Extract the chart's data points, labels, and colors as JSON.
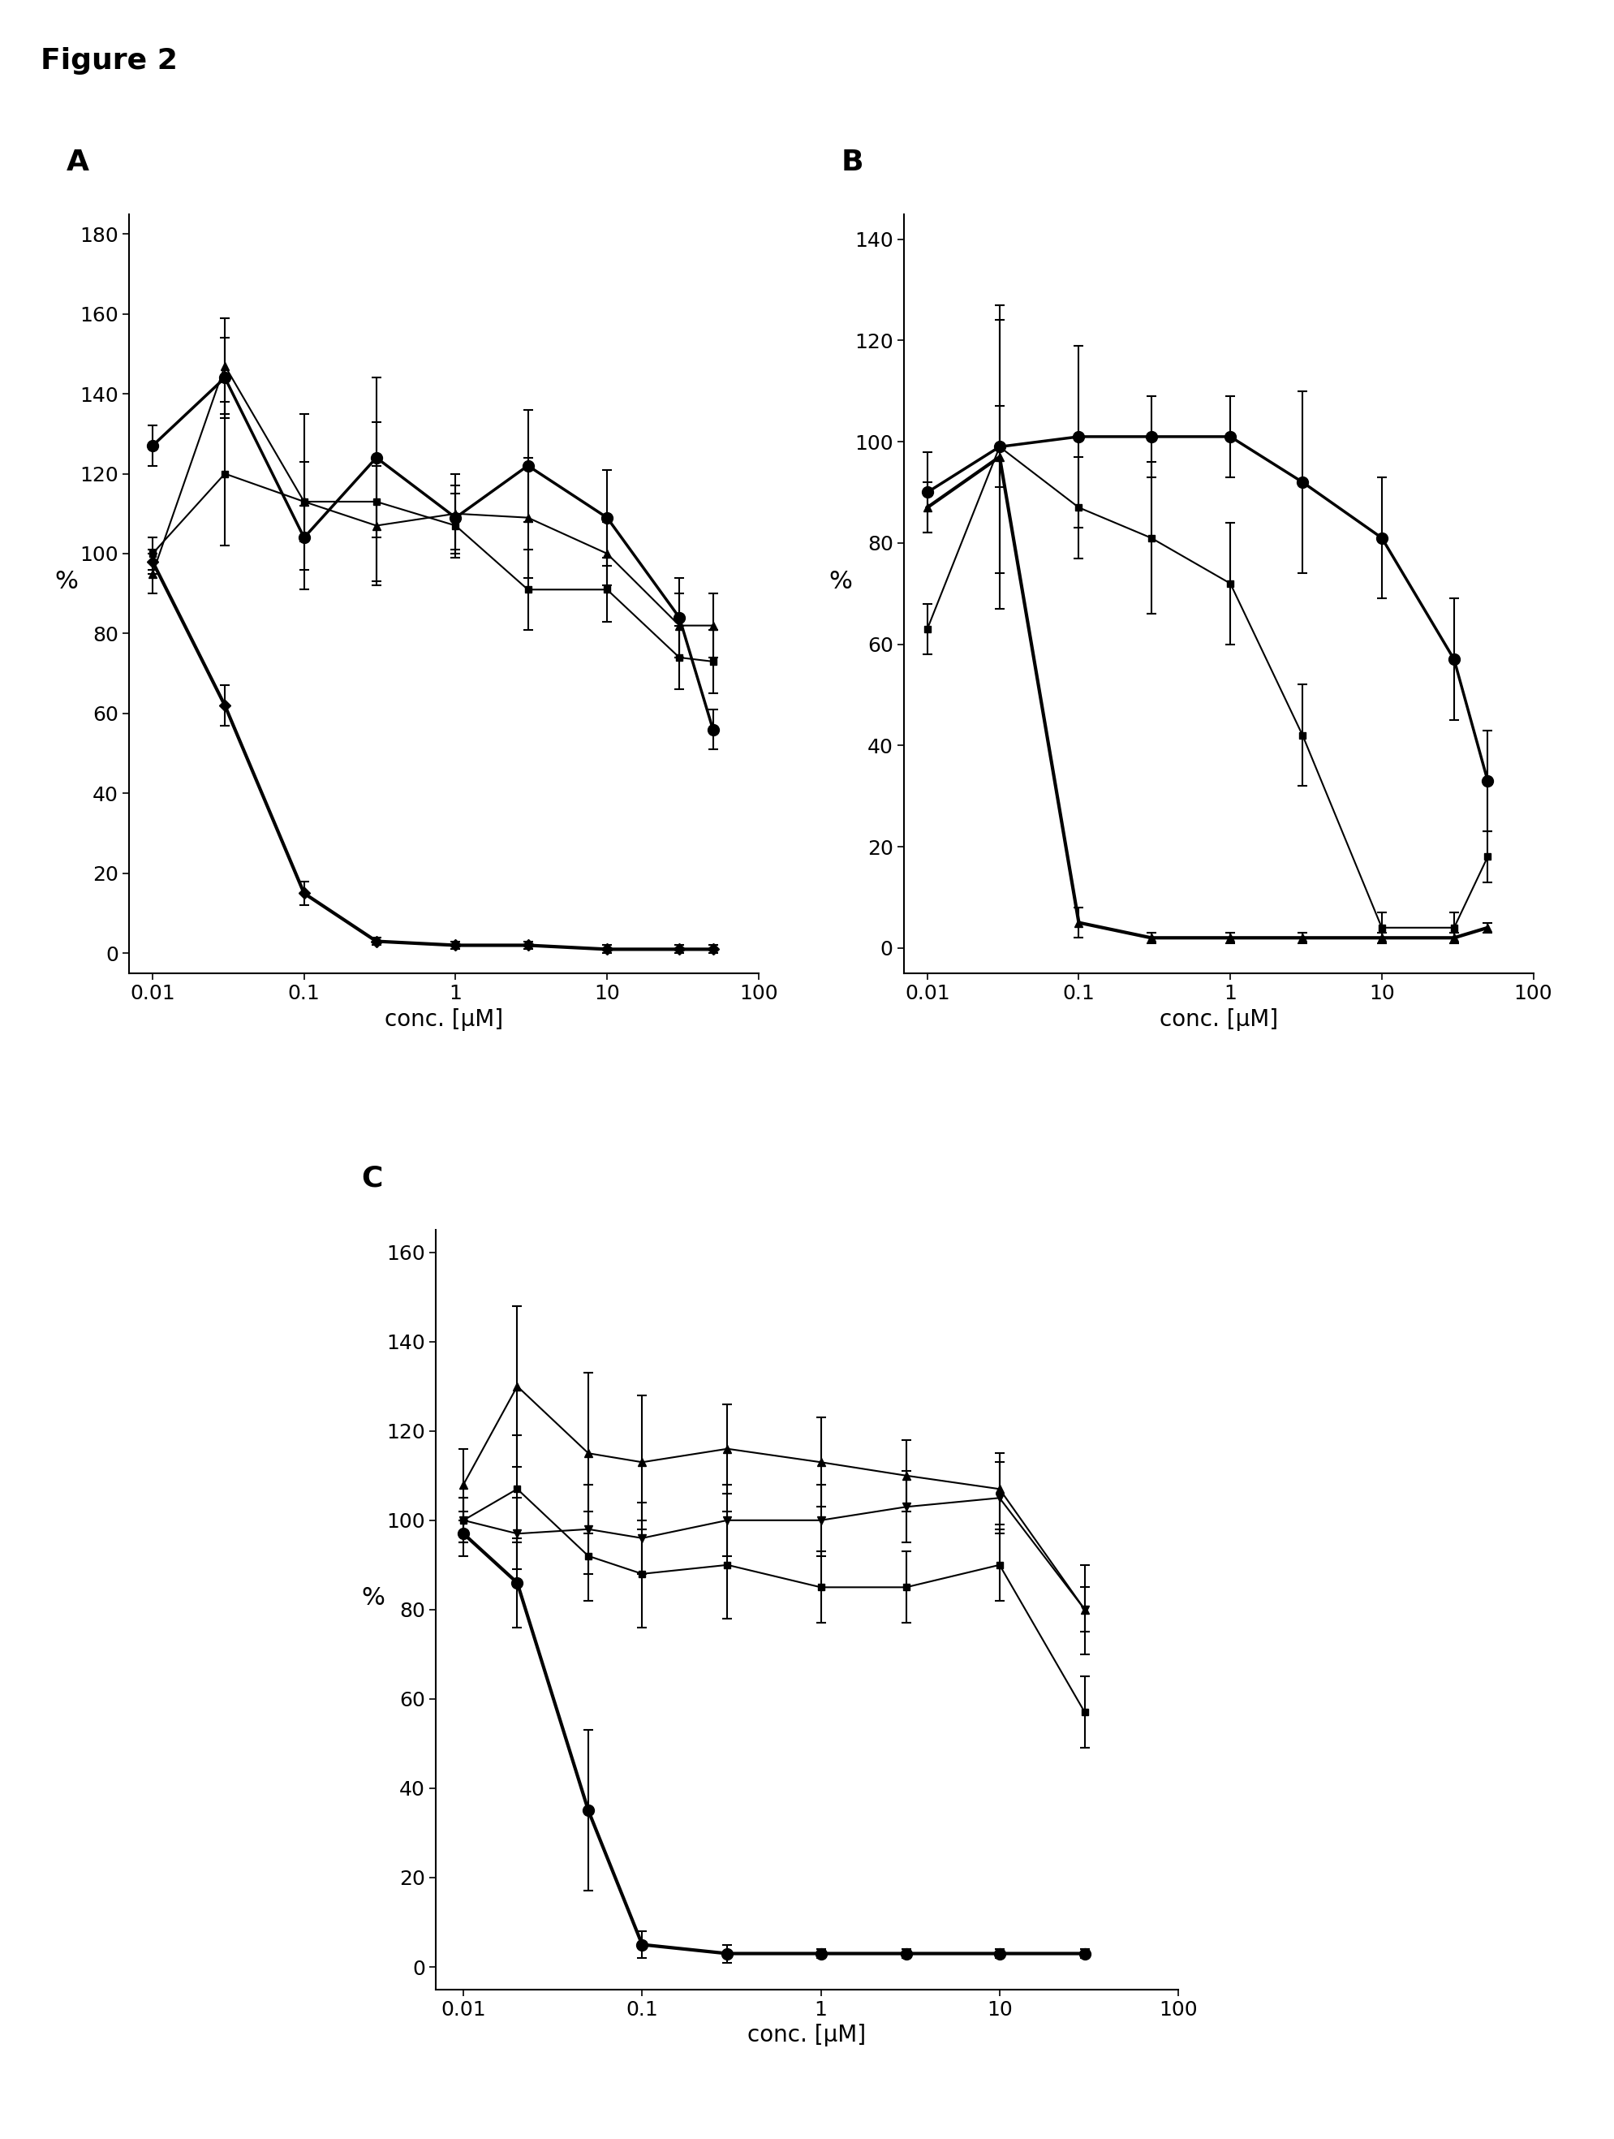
{
  "figure_label": "Figure 2",
  "panel_labels": [
    "A",
    "B",
    "C"
  ],
  "panel_A": {
    "xlabel": "conc. [μM]",
    "ylabel": "%",
    "ylim": [
      -5,
      185
    ],
    "yticks": [
      0,
      20,
      40,
      60,
      80,
      100,
      120,
      140,
      160,
      180
    ],
    "xlim": [
      0.007,
      100
    ],
    "xticks": [
      0.01,
      0.1,
      1,
      10,
      100
    ],
    "xticklabels": [
      "0.01",
      "0.1",
      "1",
      "10",
      "100"
    ],
    "series": [
      {
        "name": "circle_bold",
        "x": [
          0.01,
          0.03,
          0.1,
          0.3,
          1,
          3,
          10,
          30,
          50
        ],
        "y": [
          127,
          144,
          104,
          124,
          109,
          122,
          109,
          84,
          56
        ],
        "yerr": [
          5,
          10,
          8,
          20,
          8,
          14,
          12,
          10,
          5
        ],
        "marker": "o",
        "markersize": 10,
        "linewidth": 2.5,
        "color": "#000000"
      },
      {
        "name": "square",
        "x": [
          0.01,
          0.03,
          0.1,
          0.3,
          1,
          3,
          10,
          30,
          50
        ],
        "y": [
          100,
          120,
          113,
          113,
          107,
          91,
          91,
          74,
          73
        ],
        "yerr": [
          4,
          18,
          10,
          20,
          8,
          10,
          8,
          8,
          8
        ],
        "marker": "s",
        "markersize": 6,
        "linewidth": 1.5,
        "color": "#000000"
      },
      {
        "name": "triangle",
        "x": [
          0.01,
          0.03,
          0.1,
          0.3,
          1,
          3,
          10,
          30,
          50
        ],
        "y": [
          95,
          147,
          113,
          107,
          110,
          109,
          100,
          82,
          82
        ],
        "yerr": [
          5,
          12,
          22,
          15,
          10,
          15,
          8,
          8,
          8
        ],
        "marker": "^",
        "markersize": 7,
        "linewidth": 1.5,
        "color": "#000000"
      },
      {
        "name": "diamond_bold",
        "x": [
          0.01,
          0.03,
          0.1,
          0.3,
          1,
          3,
          10,
          30,
          50
        ],
        "y": [
          98,
          62,
          15,
          3,
          2,
          2,
          1,
          1,
          1
        ],
        "yerr": [
          3,
          5,
          3,
          1,
          1,
          1,
          1,
          1,
          1
        ],
        "marker": "D",
        "markersize": 7,
        "linewidth": 3.0,
        "color": "#000000"
      }
    ]
  },
  "panel_B": {
    "xlabel": "conc. [μM]",
    "ylabel": "%",
    "ylim": [
      -5,
      145
    ],
    "yticks": [
      0,
      20,
      40,
      60,
      80,
      100,
      120,
      140
    ],
    "xlim": [
      0.007,
      100
    ],
    "xticks": [
      0.01,
      0.1,
      1,
      10,
      100
    ],
    "xticklabels": [
      "0.01",
      "0.1",
      "1",
      "10",
      "100"
    ],
    "series": [
      {
        "name": "circle_bold",
        "x": [
          0.01,
          0.03,
          0.1,
          0.3,
          1,
          3,
          10,
          30,
          50
        ],
        "y": [
          90,
          99,
          101,
          101,
          101,
          92,
          81,
          57,
          33
        ],
        "yerr": [
          8,
          25,
          18,
          8,
          8,
          18,
          12,
          12,
          10
        ],
        "marker": "o",
        "markersize": 10,
        "linewidth": 2.5,
        "color": "#000000"
      },
      {
        "name": "square",
        "x": [
          0.01,
          0.03,
          0.1,
          0.3,
          1,
          3,
          10,
          30,
          50
        ],
        "y": [
          63,
          99,
          87,
          81,
          72,
          42,
          4,
          4,
          18
        ],
        "yerr": [
          5,
          8,
          10,
          15,
          12,
          10,
          3,
          3,
          5
        ],
        "marker": "s",
        "markersize": 6,
        "linewidth": 1.5,
        "color": "#000000"
      },
      {
        "name": "triangle_bold",
        "x": [
          0.01,
          0.03,
          0.1,
          0.3,
          1,
          3,
          10,
          30,
          50
        ],
        "y": [
          87,
          97,
          5,
          2,
          2,
          2,
          2,
          2,
          4
        ],
        "yerr": [
          5,
          30,
          3,
          1,
          1,
          1,
          1,
          1,
          1
        ],
        "marker": "^",
        "markersize": 7,
        "linewidth": 3.0,
        "color": "#000000"
      }
    ]
  },
  "panel_C": {
    "xlabel": "conc. [μM]",
    "ylabel": "%",
    "ylim": [
      -5,
      165
    ],
    "yticks": [
      0,
      20,
      40,
      60,
      80,
      100,
      120,
      140,
      160
    ],
    "xlim": [
      0.007,
      100
    ],
    "xticks": [
      0.01,
      0.1,
      1,
      10,
      100
    ],
    "xticklabels": [
      "0.01",
      "0.1",
      "1",
      "10",
      "100"
    ],
    "series": [
      {
        "name": "circle_bold",
        "x": [
          0.01,
          0.02,
          0.05,
          0.1,
          0.3,
          1,
          3,
          10,
          30
        ],
        "y": [
          97,
          86,
          35,
          5,
          3,
          3,
          3,
          3,
          3
        ],
        "yerr": [
          5,
          10,
          18,
          3,
          2,
          1,
          1,
          1,
          1
        ],
        "marker": "o",
        "markersize": 10,
        "linewidth": 3.0,
        "color": "#000000"
      },
      {
        "name": "square",
        "x": [
          0.01,
          0.02,
          0.05,
          0.1,
          0.3,
          1,
          3,
          10,
          30
        ],
        "y": [
          100,
          107,
          92,
          88,
          90,
          85,
          85,
          90,
          57
        ],
        "yerr": [
          5,
          12,
          10,
          12,
          12,
          8,
          8,
          8,
          8
        ],
        "marker": "s",
        "markersize": 6,
        "linewidth": 1.5,
        "color": "#000000"
      },
      {
        "name": "triangle",
        "x": [
          0.01,
          0.02,
          0.05,
          0.1,
          0.3,
          1,
          3,
          10,
          30
        ],
        "y": [
          108,
          130,
          115,
          113,
          116,
          113,
          110,
          107,
          80
        ],
        "yerr": [
          8,
          18,
          18,
          15,
          10,
          10,
          8,
          8,
          10
        ],
        "marker": "^",
        "markersize": 7,
        "linewidth": 1.5,
        "color": "#000000"
      },
      {
        "name": "inverted_triangle",
        "x": [
          0.01,
          0.02,
          0.05,
          0.1,
          0.3,
          1,
          3,
          10,
          30
        ],
        "y": [
          100,
          97,
          98,
          96,
          100,
          100,
          103,
          105,
          80
        ],
        "yerr": [
          5,
          8,
          10,
          8,
          8,
          8,
          8,
          8,
          5
        ],
        "marker": "v",
        "markersize": 7,
        "linewidth": 1.5,
        "color": "#000000"
      }
    ]
  },
  "background_color": "#ffffff",
  "font_size": 20,
  "ylabel_fontsize": 22,
  "panel_label_fontsize": 26,
  "tick_fontsize": 18
}
